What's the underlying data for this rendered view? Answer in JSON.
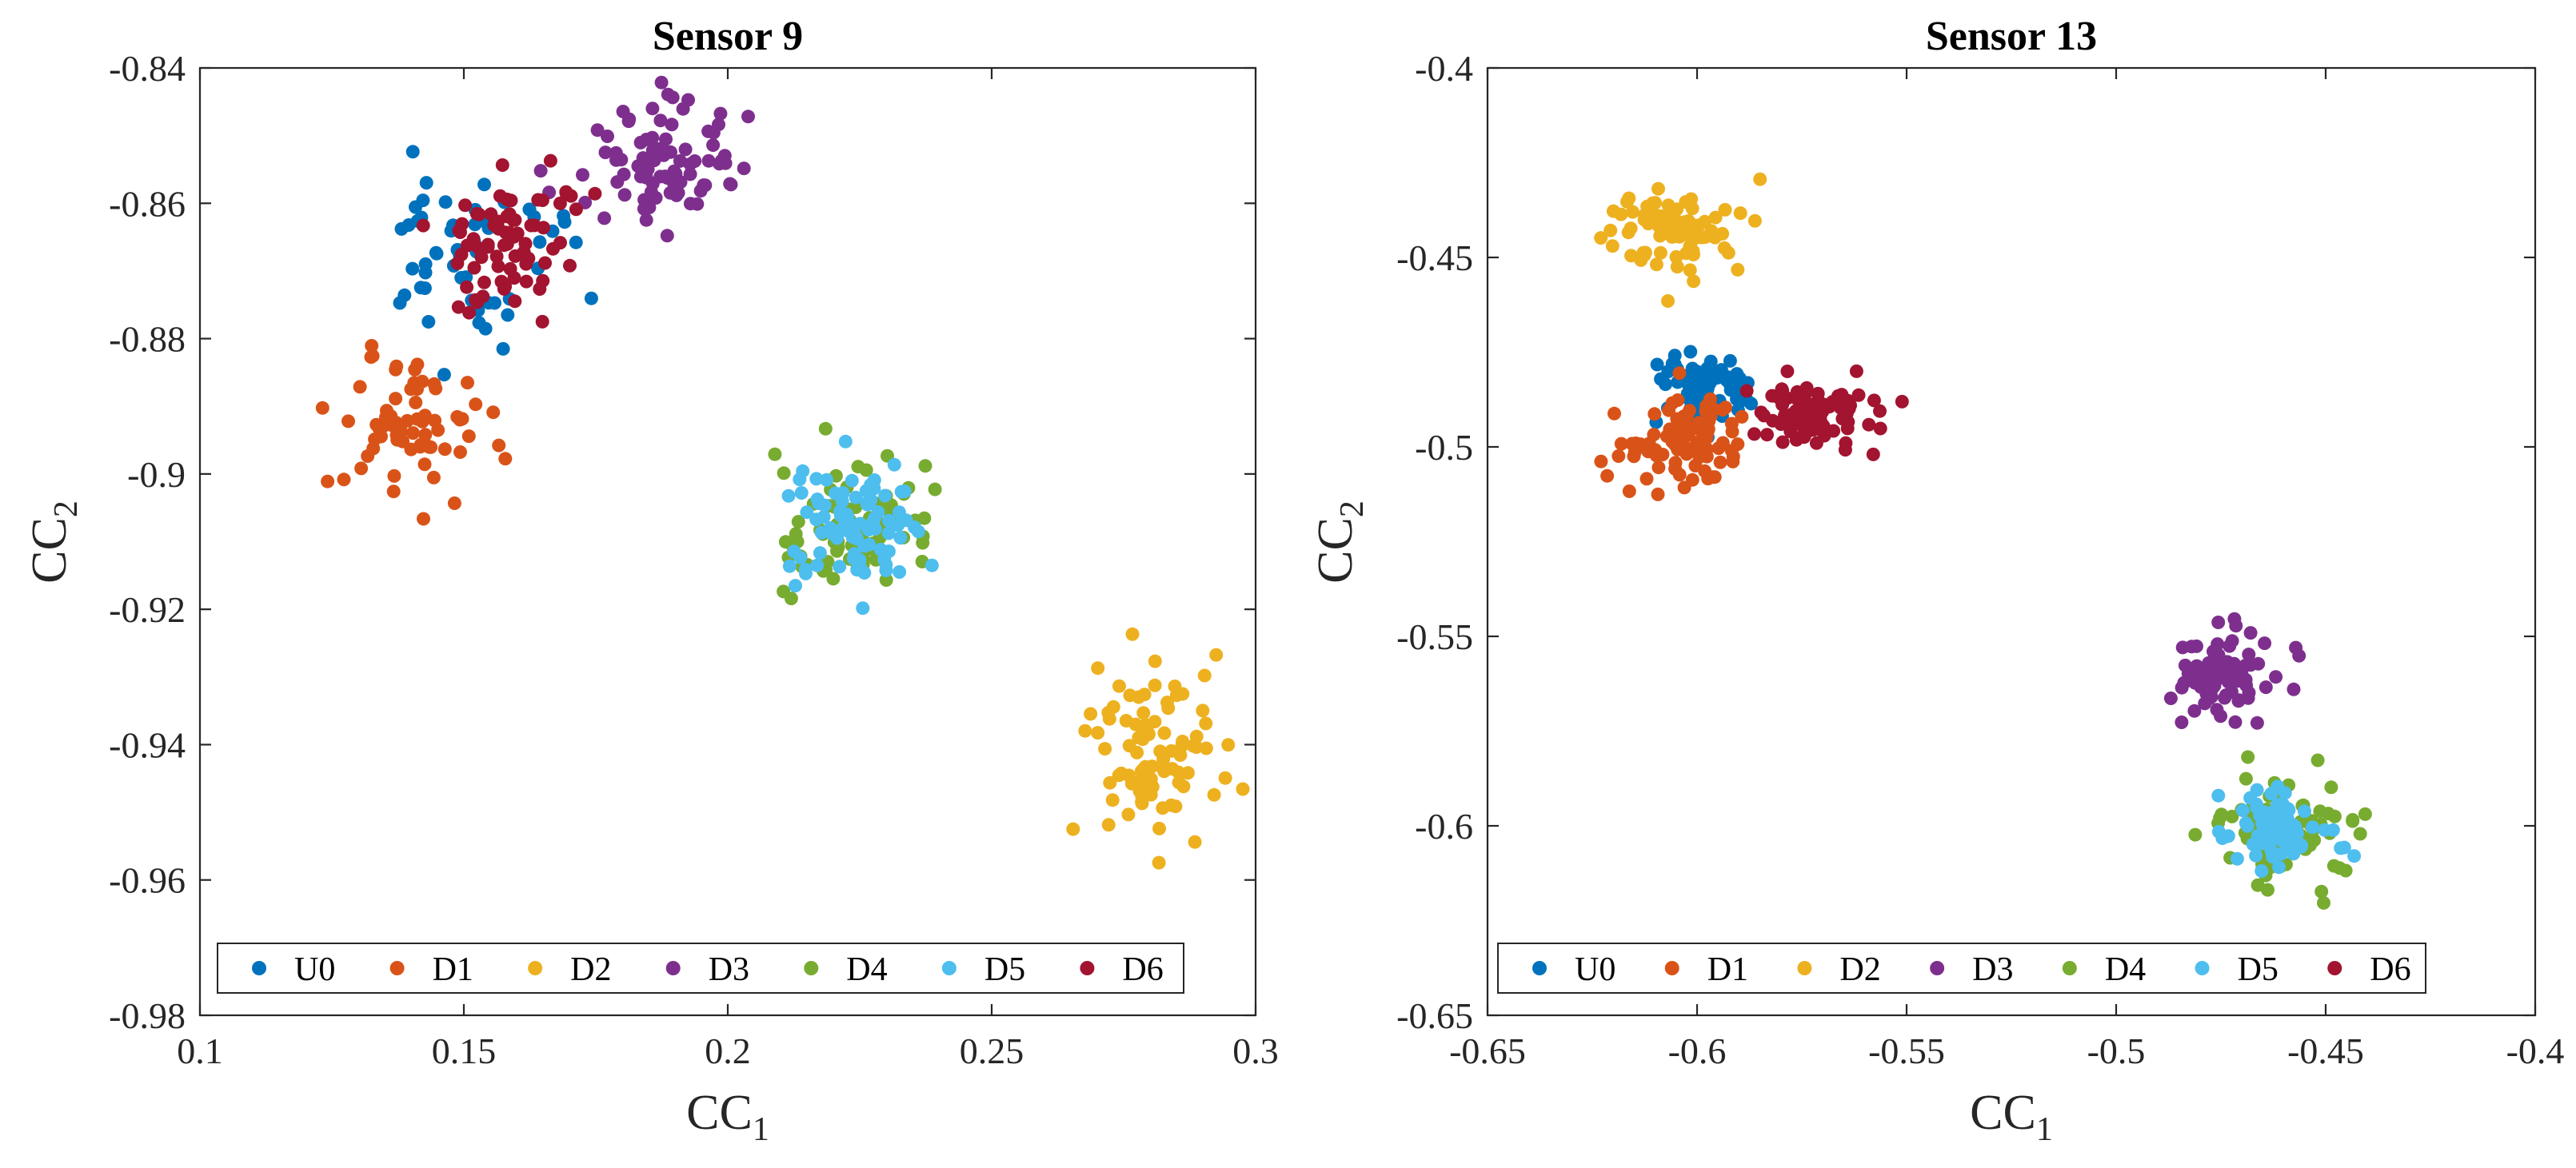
{
  "chart_data": [
    {
      "type": "scatter",
      "title": "Sensor 9",
      "xlabel": "CC",
      "xlabel_sub": "1",
      "ylabel": "CC",
      "ylabel_sub": "2",
      "xlim": [
        0.1,
        0.3
      ],
      "ylim": [
        -0.98,
        -0.84
      ],
      "xticks": [
        0.1,
        0.15,
        0.2,
        0.25,
        0.3
      ],
      "xtick_labels": [
        "0.1",
        "0.15",
        "0.2",
        "0.25",
        "0.3"
      ],
      "yticks": [
        -0.98,
        -0.96,
        -0.94,
        -0.92,
        -0.9,
        -0.88,
        -0.86,
        -0.84
      ],
      "ytick_labels": [
        "-0.98",
        "-0.96",
        "-0.94",
        "-0.92",
        "-0.9",
        "-0.88",
        "-0.86",
        "-0.84"
      ],
      "legend_position": "bottom",
      "series": [
        {
          "name": "U0",
          "color": "#0072BD",
          "cluster": {
            "cx": 0.15,
            "cy": -0.867,
            "sx": 0.009,
            "sy": 0.007,
            "n": 55
          }
        },
        {
          "name": "D1",
          "color": "#D95319",
          "cluster": {
            "cx": 0.14,
            "cy": -0.893,
            "sx": 0.008,
            "sy": 0.005,
            "n": 70
          }
        },
        {
          "name": "D2",
          "color": "#EDB120",
          "cluster": {
            "cx": 0.281,
            "cy": -0.94,
            "sx": 0.006,
            "sy": 0.007,
            "n": 90
          }
        },
        {
          "name": "D3",
          "color": "#7E2F8E",
          "cluster": {
            "cx": 0.186,
            "cy": -0.855,
            "sx": 0.007,
            "sy": 0.005,
            "n": 90
          }
        },
        {
          "name": "D4",
          "color": "#77AC30",
          "cluster": {
            "cx": 0.224,
            "cy": -0.908,
            "sx": 0.008,
            "sy": 0.005,
            "n": 80
          }
        },
        {
          "name": "D5",
          "color": "#4DBEEE",
          "cluster": {
            "cx": 0.224,
            "cy": -0.908,
            "sx": 0.006,
            "sy": 0.004,
            "n": 90
          }
        },
        {
          "name": "D6",
          "color": "#A2142F",
          "cluster": {
            "cx": 0.158,
            "cy": -0.866,
            "sx": 0.006,
            "sy": 0.005,
            "n": 75
          }
        }
      ]
    },
    {
      "type": "scatter",
      "title": "Sensor 13",
      "xlabel": "CC",
      "xlabel_sub": "1",
      "ylabel": "CC",
      "ylabel_sub": "2",
      "xlim": [
        -0.65,
        -0.4
      ],
      "ylim": [
        -0.65,
        -0.4
      ],
      "xticks": [
        -0.65,
        -0.6,
        -0.55,
        -0.5,
        -0.45,
        -0.4
      ],
      "xtick_labels": [
        "-0.65",
        "-0.6",
        "-0.55",
        "-0.5",
        "-0.45",
        "-0.4"
      ],
      "yticks": [
        -0.65,
        -0.6,
        -0.55,
        -0.5,
        -0.45,
        -0.4
      ],
      "ytick_labels": [
        "-0.65",
        "-0.6",
        "-0.55",
        "-0.5",
        "-0.45",
        "-0.4"
      ],
      "legend_position": "bottom",
      "series": [
        {
          "name": "U0",
          "color": "#0072BD",
          "cluster": {
            "cx": -0.598,
            "cy": -0.485,
            "sx": 0.006,
            "sy": 0.005,
            "n": 70
          }
        },
        {
          "name": "D1",
          "color": "#D95319",
          "cluster": {
            "cx": -0.603,
            "cy": -0.498,
            "sx": 0.007,
            "sy": 0.006,
            "n": 90
          }
        },
        {
          "name": "D2",
          "color": "#EDB120",
          "cluster": {
            "cx": -0.607,
            "cy": -0.442,
            "sx": 0.008,
            "sy": 0.006,
            "n": 80
          }
        },
        {
          "name": "D3",
          "color": "#7E2F8E",
          "cluster": {
            "cx": -0.474,
            "cy": -0.56,
            "sx": 0.006,
            "sy": 0.006,
            "n": 80
          }
        },
        {
          "name": "D4",
          "color": "#77AC30",
          "cluster": {
            "cx": -0.461,
            "cy": -0.601,
            "sx": 0.008,
            "sy": 0.007,
            "n": 90
          }
        },
        {
          "name": "D5",
          "color": "#4DBEEE",
          "cluster": {
            "cx": -0.461,
            "cy": -0.601,
            "sx": 0.006,
            "sy": 0.005,
            "n": 90
          }
        },
        {
          "name": "D6",
          "color": "#A2142F",
          "cluster": {
            "cx": -0.572,
            "cy": -0.492,
            "sx": 0.007,
            "sy": 0.005,
            "n": 90
          }
        }
      ]
    }
  ]
}
